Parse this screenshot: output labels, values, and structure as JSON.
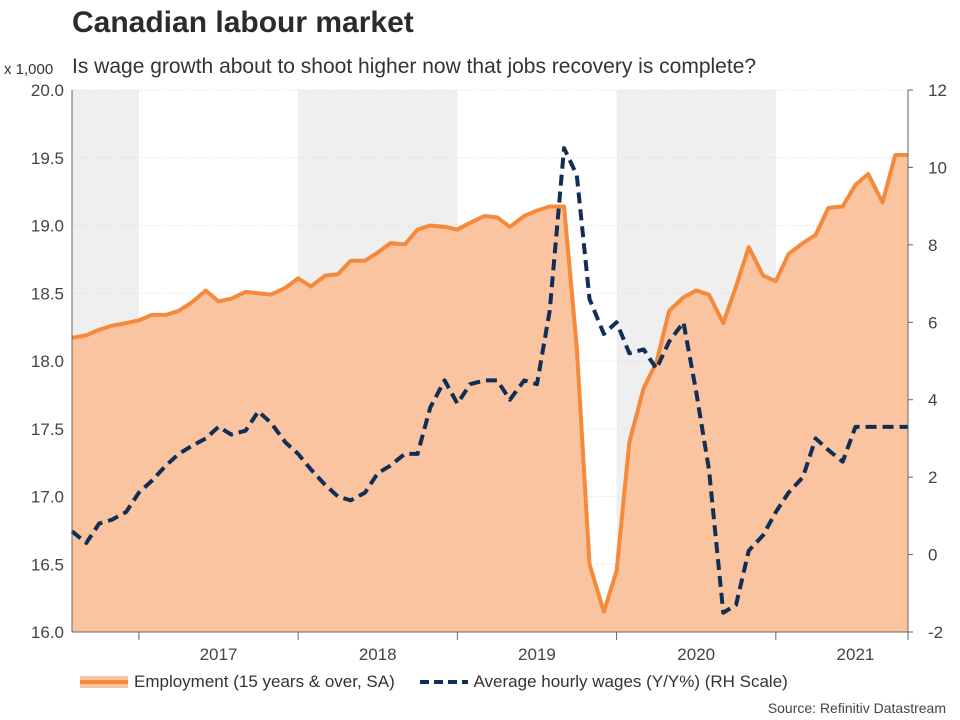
{
  "chart_data": {
    "type": "area+line",
    "title": "Canadian labour market",
    "subtitle": "Is wage growth about to shoot higher now that jobs recovery is complete?",
    "left_axis_unit": "x 1,000",
    "left_ylim": [
      16.0,
      20.0
    ],
    "left_yticks": [
      "16.0",
      "16.5",
      "17.0",
      "17.5",
      "18.0",
      "18.5",
      "19.0",
      "19.5",
      "20.0"
    ],
    "right_ylim": [
      -2,
      12
    ],
    "right_yticks": [
      "-2",
      "0",
      "2",
      "4",
      "6",
      "8",
      "10",
      "12"
    ],
    "x_range": [
      2016.58,
      2021.83
    ],
    "x_labels": [
      "2017",
      "2018",
      "2019",
      "2020",
      "2021"
    ],
    "shaded_years": [
      [
        2016.58,
        2017.0
      ],
      [
        2018.0,
        2019.0
      ],
      [
        2020.0,
        2021.0
      ]
    ],
    "grid": true,
    "series": [
      {
        "name": "Employment (15 years & over, SA)",
        "axis": "left",
        "style": "area+solid",
        "color": "#f58a3c",
        "fill": "#f9c49f",
        "x": [
          2016.58,
          2016.67,
          2016.75,
          2016.83,
          2016.92,
          2017.0,
          2017.08,
          2017.17,
          2017.25,
          2017.33,
          2017.42,
          2017.5,
          2017.58,
          2017.67,
          2017.75,
          2017.83,
          2017.92,
          2018.0,
          2018.08,
          2018.17,
          2018.25,
          2018.33,
          2018.42,
          2018.5,
          2018.58,
          2018.67,
          2018.75,
          2018.83,
          2018.92,
          2019.0,
          2019.08,
          2019.17,
          2019.25,
          2019.33,
          2019.42,
          2019.5,
          2019.58,
          2019.67,
          2019.75,
          2019.83,
          2019.92,
          2020.0,
          2020.08,
          2020.17,
          2020.25,
          2020.33,
          2020.42,
          2020.5,
          2020.58,
          2020.67,
          2020.75,
          2020.83,
          2020.92,
          2021.0,
          2021.08,
          2021.17,
          2021.25,
          2021.33,
          2021.42,
          2021.5,
          2021.58,
          2021.67,
          2021.75,
          2021.83
        ],
        "values": [
          18.17,
          18.19,
          18.23,
          18.26,
          18.28,
          18.3,
          18.34,
          18.34,
          18.37,
          18.43,
          18.52,
          18.44,
          18.46,
          18.51,
          18.5,
          18.49,
          18.54,
          18.61,
          18.55,
          18.63,
          18.64,
          18.74,
          18.74,
          18.8,
          18.87,
          18.86,
          18.97,
          19.0,
          18.99,
          18.97,
          19.02,
          19.07,
          19.06,
          18.99,
          19.07,
          19.11,
          19.14,
          19.14,
          18.1,
          16.5,
          16.15,
          16.45,
          17.4,
          17.8,
          17.99,
          18.37,
          18.47,
          18.52,
          18.49,
          18.28,
          18.55,
          18.84,
          18.63,
          18.59,
          18.79,
          18.87,
          18.93,
          19.13,
          19.14,
          19.3,
          19.38,
          19.17,
          19.52,
          19.52
        ]
      },
      {
        "name": "Average hourly wages (Y/Y%) (RH Scale)",
        "axis": "right",
        "style": "dashed",
        "color": "#0f2f57",
        "x": [
          2016.58,
          2016.67,
          2016.75,
          2016.83,
          2016.92,
          2017.0,
          2017.08,
          2017.17,
          2017.25,
          2017.33,
          2017.42,
          2017.5,
          2017.58,
          2017.67,
          2017.75,
          2017.83,
          2017.92,
          2018.0,
          2018.08,
          2018.17,
          2018.25,
          2018.33,
          2018.42,
          2018.5,
          2018.58,
          2018.67,
          2018.75,
          2018.83,
          2018.92,
          2019.0,
          2019.08,
          2019.17,
          2019.25,
          2019.33,
          2019.42,
          2019.5,
          2019.58,
          2019.67,
          2019.75,
          2019.83,
          2019.92,
          2020.0,
          2020.08,
          2020.17,
          2020.25,
          2020.33,
          2020.42,
          2020.5,
          2020.58,
          2020.67,
          2020.75,
          2020.83,
          2020.92,
          2021.0,
          2021.08,
          2021.17,
          2021.25,
          2021.33,
          2021.42,
          2021.5,
          2021.58,
          2021.67,
          2021.75,
          2021.83
        ],
        "values": [
          0.6,
          0.3,
          0.8,
          0.9,
          1.1,
          1.6,
          1.9,
          2.3,
          2.6,
          2.8,
          3.0,
          3.3,
          3.1,
          3.2,
          3.7,
          3.4,
          2.9,
          2.6,
          2.2,
          1.8,
          1.5,
          1.4,
          1.6,
          2.1,
          2.3,
          2.6,
          2.6,
          3.8,
          4.5,
          3.9,
          4.4,
          4.5,
          4.5,
          4.0,
          4.5,
          4.4,
          6.3,
          10.5,
          9.8,
          6.6,
          5.7,
          6.0,
          5.2,
          5.3,
          4.8,
          5.5,
          6.0,
          4.2,
          2.2,
          -1.5,
          -1.3,
          0.1,
          0.5,
          1.1,
          1.6,
          2.0,
          3.0,
          2.7,
          2.4,
          3.3,
          3.3,
          3.3,
          3.3,
          3.3
        ]
      }
    ]
  },
  "legend": {
    "employment_label": "Employment (15 years & over, SA)",
    "wages_label": "Average hourly wages (Y/Y%) (RH Scale)"
  },
  "source": "Source: Refinitiv Datastream"
}
